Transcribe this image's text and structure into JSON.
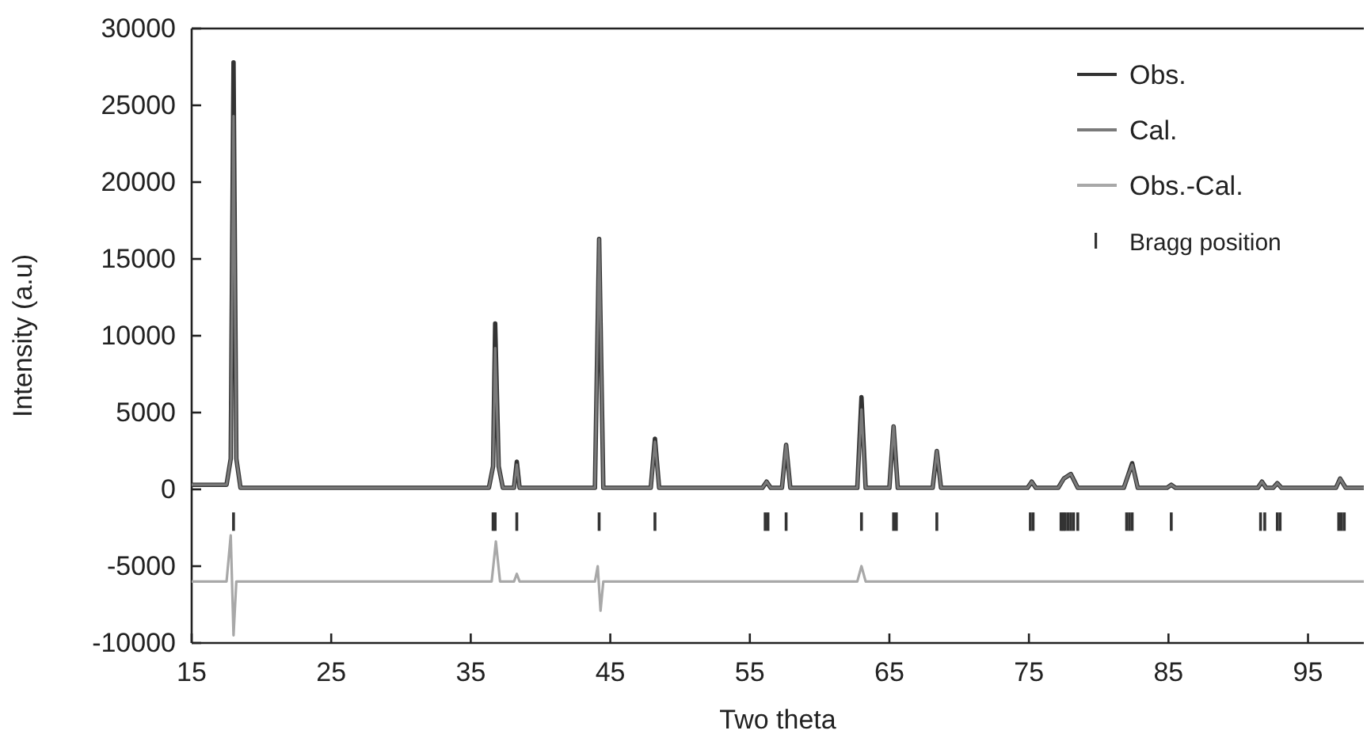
{
  "chart_data": {
    "type": "line",
    "xlabel": "Two theta",
    "ylabel": "Intensity (a.u)",
    "xlim": [
      15,
      99
    ],
    "ylim": [
      -10000,
      30000
    ],
    "xticks": [
      15,
      25,
      35,
      45,
      55,
      65,
      75,
      85,
      95
    ],
    "yticks": [
      -10000,
      -5000,
      0,
      5000,
      10000,
      15000,
      20000,
      25000,
      30000
    ],
    "legend": "top right",
    "grid": false,
    "series": [
      {
        "name": "Obs.",
        "color": "#333333",
        "x": [
          15,
          17.5,
          17.8,
          18.0,
          18.2,
          18.5,
          36.3,
          36.6,
          36.75,
          37.0,
          37.3,
          38.1,
          38.3,
          38.5,
          43.9,
          44.2,
          44.5,
          47.9,
          48.2,
          48.5,
          55.9,
          56.2,
          56.5,
          57.3,
          57.6,
          57.9,
          62.7,
          63.0,
          63.3,
          65.0,
          65.3,
          65.6,
          68.1,
          68.4,
          68.7,
          74.9,
          75.2,
          75.5,
          77.1,
          77.5,
          78.0,
          78.5,
          81.8,
          82.1,
          82.4,
          82.8,
          84.9,
          85.2,
          85.5,
          91.4,
          91.7,
          92.0,
          92.5,
          92.8,
          93.1,
          97.0,
          97.3,
          97.7,
          99
        ],
        "values": [
          300,
          300,
          2000,
          27800,
          2000,
          100,
          100,
          1500,
          10800,
          1500,
          100,
          100,
          1800,
          100,
          100,
          16300,
          100,
          100,
          3300,
          100,
          100,
          500,
          100,
          100,
          2900,
          100,
          100,
          6000,
          100,
          100,
          4100,
          100,
          100,
          2500,
          100,
          100,
          500,
          100,
          100,
          700,
          1000,
          100,
          100,
          900,
          1700,
          100,
          100,
          300,
          100,
          100,
          500,
          100,
          100,
          400,
          100,
          100,
          700,
          100,
          100
        ]
      },
      {
        "name": "Cal.",
        "color": "#7a7a7a",
        "x": [
          15,
          17.5,
          17.8,
          18.0,
          18.2,
          18.5,
          36.3,
          36.6,
          36.75,
          37.0,
          37.3,
          38.1,
          38.3,
          38.5,
          43.9,
          44.2,
          44.5,
          47.9,
          48.2,
          48.5,
          55.9,
          56.2,
          56.5,
          57.3,
          57.6,
          57.9,
          62.7,
          63.0,
          63.3,
          65.0,
          65.3,
          65.6,
          68.1,
          68.4,
          68.7,
          74.9,
          75.2,
          75.5,
          77.1,
          77.5,
          78.0,
          78.5,
          81.8,
          82.1,
          82.4,
          82.8,
          84.9,
          85.2,
          85.5,
          91.4,
          91.7,
          92.0,
          92.5,
          92.8,
          93.1,
          97.0,
          97.3,
          97.7,
          99
        ],
        "values": [
          300,
          300,
          2000,
          24300,
          2000,
          100,
          100,
          1500,
          9200,
          1500,
          100,
          100,
          1600,
          100,
          100,
          16300,
          100,
          100,
          3100,
          100,
          100,
          500,
          100,
          100,
          2900,
          100,
          100,
          5200,
          100,
          100,
          4100,
          100,
          100,
          2500,
          100,
          100,
          500,
          100,
          100,
          700,
          1000,
          100,
          100,
          900,
          1600,
          100,
          100,
          300,
          100,
          100,
          500,
          100,
          100,
          400,
          100,
          100,
          700,
          100,
          100
        ]
      },
      {
        "name": "Obs.-Cal.",
        "color": "#a8a8a8",
        "x": [
          15,
          17.5,
          17.8,
          18.0,
          18.2,
          18.5,
          21.5,
          36.5,
          36.8,
          37.1,
          38.1,
          38.3,
          38.5,
          43.9,
          44.1,
          44.3,
          44.5,
          62.7,
          63.0,
          63.3,
          99
        ],
        "values": [
          -6000,
          -6000,
          -3000,
          -9500,
          -6000,
          -6000,
          -6000,
          -6000,
          -3400,
          -6000,
          -6000,
          -5500,
          -6000,
          -6000,
          -5000,
          -7900,
          -6000,
          -6000,
          -5000,
          -6000,
          -6000
        ]
      },
      {
        "name": "Bragg position",
        "type": "bar",
        "base": [
          -2700,
          -2700,
          -2700,
          -2700,
          -2700,
          -2700,
          -2700,
          -2700,
          -2700,
          -2700,
          -2700,
          -2700,
          -2700,
          -2700,
          -2700,
          -2700,
          -2700,
          -2700,
          -2700,
          -2700,
          -2700,
          -2700,
          -2700,
          -2700,
          -2700,
          -2700,
          -2700,
          -2700,
          -2700,
          -2700,
          -2700,
          -2700,
          -2700
        ],
        "color": "#333333",
        "x": [
          18.0,
          36.6,
          36.75,
          38.3,
          44.2,
          48.2,
          56.1,
          56.3,
          57.6,
          63.0,
          65.3,
          65.5,
          68.4,
          75.1,
          75.3,
          77.3,
          77.45,
          77.6,
          77.8,
          78.0,
          78.2,
          78.5,
          82.0,
          82.2,
          82.4,
          85.2,
          91.6,
          91.9,
          92.8,
          93.0,
          97.2,
          97.4,
          97.6
        ],
        "values": [
          1200,
          1200,
          1200,
          1200,
          1200,
          1200,
          1200,
          1200,
          1200,
          1200,
          1200,
          1200,
          1200,
          1200,
          1200,
          1200,
          1200,
          1200,
          1200,
          1200,
          1200,
          1200,
          1200,
          1200,
          1200,
          1200,
          1200,
          1200,
          1200,
          1200,
          1200,
          1200,
          1200
        ]
      }
    ]
  }
}
